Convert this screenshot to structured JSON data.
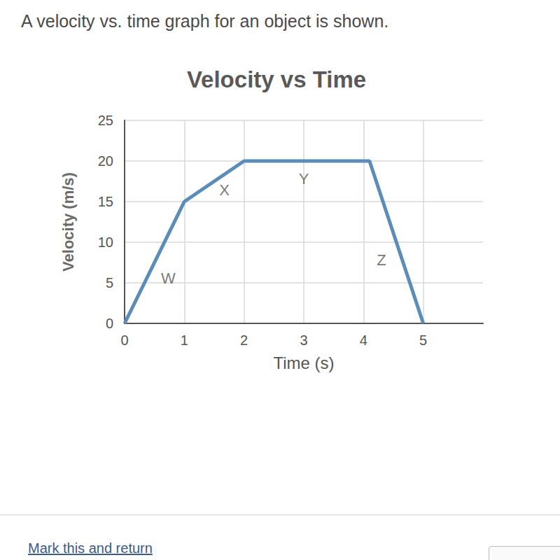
{
  "chart_data": {
    "type": "line",
    "title": "Velocity vs Time",
    "x_label": "Time (s)",
    "y_label": "Velocity (m/s)",
    "x": [
      0,
      1,
      2,
      4.1,
      5
    ],
    "values": [
      0,
      15,
      20,
      20,
      0
    ],
    "color": "#5b8db8",
    "xlim": [
      0,
      6
    ],
    "xticks": [
      0,
      1,
      2,
      3,
      4,
      5
    ],
    "ylim": [
      0,
      25
    ],
    "yticks": [
      0,
      5,
      10,
      15,
      20,
      25
    ],
    "grid": true,
    "annotations": [
      {
        "text": "W",
        "x": 0.73,
        "y": 5.6
      },
      {
        "text": "X",
        "x": 1.67,
        "y": 16.4
      },
      {
        "text": "Y",
        "x": 3.0,
        "y": 17.8
      },
      {
        "text": "Z",
        "x": 4.3,
        "y": 7.8
      }
    ]
  },
  "page": {
    "question": "A velocity vs. time graph for an object is shown.",
    "footer": "Mark this and return"
  }
}
